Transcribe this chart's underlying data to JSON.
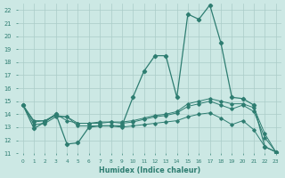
{
  "xlabel": "Humidex (Indice chaleur)",
  "x": [
    0,
    1,
    2,
    3,
    4,
    5,
    6,
    7,
    8,
    9,
    10,
    11,
    12,
    13,
    14,
    15,
    16,
    17,
    18,
    19,
    20,
    21,
    22,
    23
  ],
  "line1": [
    14.7,
    12.9,
    13.4,
    14.0,
    11.7,
    11.8,
    13.0,
    13.1,
    13.1,
    13.1,
    15.3,
    17.3,
    18.5,
    18.5,
    15.3,
    21.7,
    21.3,
    22.4,
    19.5,
    15.3,
    15.2,
    14.7,
    11.5,
    11.1
  ],
  "line2": [
    14.7,
    13.5,
    13.5,
    14.0,
    13.5,
    13.3,
    13.3,
    13.4,
    13.4,
    13.4,
    13.5,
    13.7,
    13.9,
    14.0,
    14.2,
    14.8,
    15.0,
    15.2,
    15.0,
    14.8,
    14.8,
    14.5,
    12.5,
    11.1
  ],
  "line3": [
    14.7,
    13.4,
    13.5,
    13.9,
    13.8,
    13.3,
    13.3,
    13.3,
    13.4,
    13.3,
    13.4,
    13.6,
    13.8,
    13.9,
    14.1,
    14.6,
    14.8,
    15.0,
    14.7,
    14.4,
    14.7,
    14.2,
    12.2,
    11.1
  ],
  "line4": [
    14.7,
    13.2,
    13.3,
    13.8,
    13.8,
    13.1,
    13.1,
    13.1,
    13.1,
    13.0,
    13.1,
    13.2,
    13.3,
    13.4,
    13.5,
    13.8,
    14.0,
    14.1,
    13.7,
    13.2,
    13.5,
    12.8,
    11.5,
    11.1
  ],
  "line_color": "#2e7d71",
  "bg_color": "#cce8e4",
  "grid_color": "#aaccc8",
  "ylim": [
    11,
    22.5
  ],
  "xlim": [
    -0.5,
    23.5
  ],
  "yticks": [
    11,
    12,
    13,
    14,
    15,
    16,
    17,
    18,
    19,
    20,
    21,
    22
  ],
  "xticks": [
    0,
    1,
    2,
    3,
    4,
    5,
    6,
    7,
    8,
    9,
    10,
    11,
    12,
    13,
    14,
    15,
    16,
    17,
    18,
    19,
    20,
    21,
    22,
    23
  ]
}
